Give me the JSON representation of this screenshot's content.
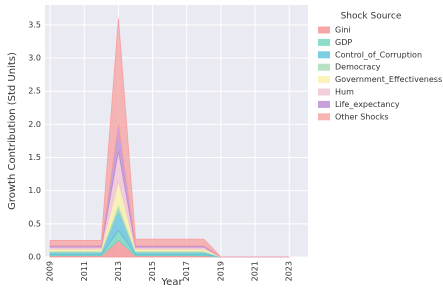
{
  "chart_data": {
    "type": "stacked_area",
    "x_label": "Year",
    "y_label": "Growth Contribution (Std Units)",
    "legend_title": "Shock Source",
    "legend": "outside-right",
    "grid": true,
    "x": [
      2009,
      2010,
      2011,
      2012,
      2013,
      2014,
      2015,
      2016,
      2017,
      2018,
      2019,
      2020,
      2021,
      2022,
      2023
    ],
    "series": [
      {
        "name": "Gini",
        "color": "#f58f8f",
        "values": [
          0.02,
          0.02,
          0.02,
          0.02,
          0.25,
          0.02,
          0.02,
          0.02,
          0.02,
          0.02,
          0,
          0,
          0,
          0,
          0
        ]
      },
      {
        "name": "GDP",
        "color": "#6fd3bd",
        "values": [
          0.02,
          0.02,
          0.02,
          0.02,
          0.15,
          0.02,
          0.02,
          0.02,
          0.02,
          0.02,
          0,
          0,
          0,
          0,
          0
        ]
      },
      {
        "name": "Control_of_Corruption",
        "color": "#5cc0dc",
        "values": [
          0.03,
          0.03,
          0.03,
          0.03,
          0.3,
          0.03,
          0.03,
          0.03,
          0.03,
          0.03,
          0,
          0,
          0,
          0,
          0
        ]
      },
      {
        "name": "Democracy",
        "color": "#a5dcb5",
        "values": [
          0.02,
          0.02,
          0.02,
          0.02,
          0.1,
          0.02,
          0.02,
          0.02,
          0.02,
          0.02,
          0,
          0,
          0,
          0,
          0
        ]
      },
      {
        "name": "Government_Effectiveness",
        "color": "#fbf0a6",
        "values": [
          0.03,
          0.03,
          0.03,
          0.03,
          0.35,
          0.03,
          0.03,
          0.03,
          0.03,
          0.03,
          0,
          0,
          0,
          0,
          0
        ]
      },
      {
        "name": "Hum",
        "color": "#f3c2d2",
        "values": [
          0.03,
          0.03,
          0.03,
          0.03,
          0.45,
          0.03,
          0.03,
          0.03,
          0.03,
          0.03,
          0,
          0,
          0,
          0,
          0
        ]
      },
      {
        "name": "Life_expectancy",
        "color": "#b98ad0",
        "values": [
          0.02,
          0.02,
          0.02,
          0.02,
          0.4,
          0.02,
          0.02,
          0.02,
          0.02,
          0.02,
          0,
          0,
          0,
          0,
          0
        ]
      },
      {
        "name": "Other Shocks",
        "color": "#f7a0a0",
        "values": [
          0.08,
          0.08,
          0.08,
          0.08,
          1.6,
          0.1,
          0.1,
          0.1,
          0.1,
          0.1,
          0,
          0,
          0,
          0,
          0
        ]
      }
    ],
    "xlim": [
      2008.7,
      2024.1
    ],
    "xticks": [
      2009,
      2011,
      2013,
      2015,
      2017,
      2019,
      2021,
      2023
    ],
    "ylim": [
      0,
      3.8
    ],
    "yticks": [
      {
        "value": 0,
        "label": "0.0"
      },
      0.5,
      {
        "value": 1,
        "label": "1.0"
      },
      1.5,
      {
        "value": 2,
        "label": "2.0"
      },
      2.5,
      {
        "value": 3,
        "label": "3.0"
      },
      3.5
    ]
  }
}
